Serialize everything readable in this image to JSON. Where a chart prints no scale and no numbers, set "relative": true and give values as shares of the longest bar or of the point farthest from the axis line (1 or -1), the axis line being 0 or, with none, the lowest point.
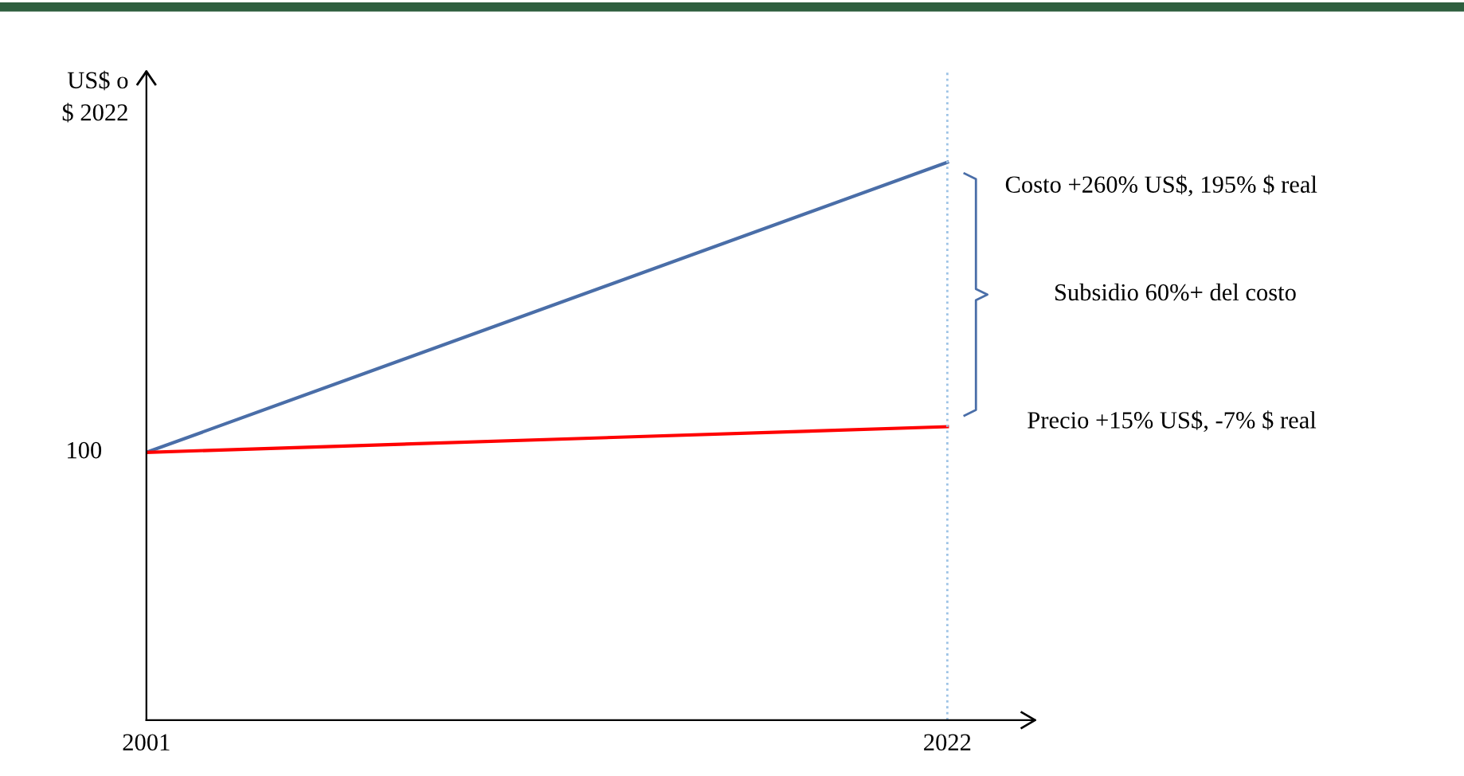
{
  "chart_data": {
    "type": "line",
    "relative": true,
    "ylabel": "US$ o\n$ 2022",
    "x": [
      2001,
      2022
    ],
    "xlim": [
      2001,
      2024.3
    ],
    "xticks": [
      2001,
      2022
    ],
    "series": [
      {
        "color": "#4a6ea8",
        "values": [
          0.48,
          1
        ]
      },
      {
        "color": "#ff0000",
        "values": [
          0.48,
          0.526
        ]
      }
    ],
    "ref_lines": [
      {
        "axis": "x",
        "value": 2022,
        "color": "#9dc3e6",
        "line_style": "dotted"
      }
    ],
    "annotations": [
      {
        "text": "100",
        "x": 2001,
        "y": 0.48
      },
      "Costo +260% US$, 195% $ real",
      "Subsidio 60%+ del costo",
      "Precio +15% US$, -7% $ real"
    ],
    "grid": false,
    "legend": false,
    "marker": "none",
    "line_style": "solid"
  }
}
